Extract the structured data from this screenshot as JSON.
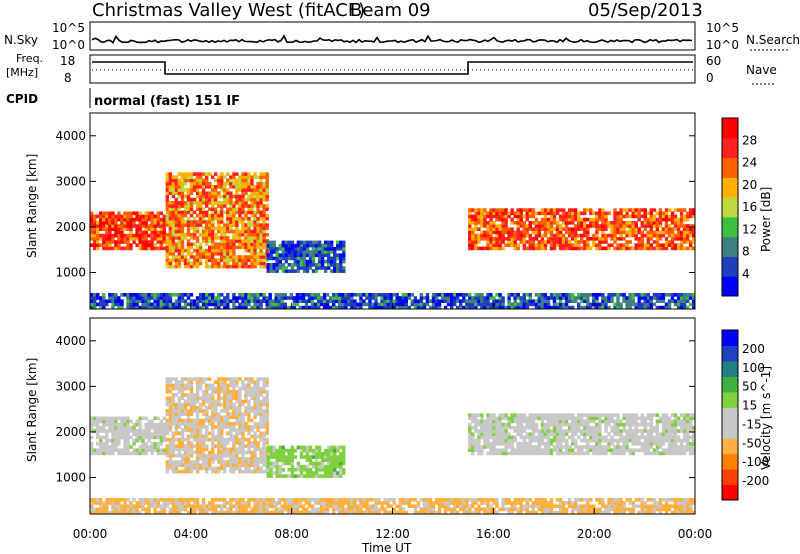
{
  "header": {
    "station": "Christmas Valley West (fitACF)",
    "beam": "Beam 09",
    "date": "05/Sep/2013"
  },
  "noise_panel": {
    "left_label": "N.Sky",
    "right_label": "N.Search",
    "left_ticks": [
      "10^5",
      "10^0"
    ],
    "right_ticks": [
      "10^5",
      "10^0"
    ]
  },
  "freq_panel": {
    "left_label_1": "Freq.",
    "left_label_2": "[MHz]",
    "right_label": "Nave",
    "left_ticks": [
      "18",
      "8"
    ],
    "right_ticks": [
      "60",
      "0"
    ]
  },
  "cpid": {
    "label": "CPID",
    "value": "normal (fast) 151 IF"
  },
  "colors": {
    "power_scale": [
      "#0000ff",
      "#1f3fbf",
      "#3f7f7f",
      "#3fbf3f",
      "#bfd83f",
      "#ffb000",
      "#ff6000",
      "#ff2020",
      "#ff0000"
    ],
    "velocity_scale": [
      "#ff0000",
      "#ff4000",
      "#ff8000",
      "#ffb040",
      "#c8c8c8",
      "#c8c8c8",
      "#80d040",
      "#40b040",
      "#208080",
      "#2040c0",
      "#0000ff"
    ]
  },
  "chart_data": [
    {
      "type": "heatmap",
      "panel": "power",
      "xlabel": "",
      "ylabel": "Slant Range [km]",
      "ylim": [
        200,
        4500
      ],
      "y_ticks": [
        "1000",
        "2000",
        "3000",
        "4000"
      ],
      "colorbar": {
        "label": "Power [dB]",
        "ticks": [
          "4",
          "8",
          "12",
          "16",
          "20",
          "24",
          "28"
        ],
        "range": [
          0,
          32
        ]
      },
      "features": [
        {
          "name": "main_band",
          "x_hours": [
            0,
            3
          ],
          "range_km": [
            1500,
            2300
          ],
          "value_db": 26
        },
        {
          "name": "rising_arc",
          "x_hours": [
            3,
            7
          ],
          "range_km": [
            1100,
            3200
          ],
          "value_db": 22
        },
        {
          "name": "evening_band",
          "x_hours": [
            15,
            24
          ],
          "range_km": [
            1500,
            2400
          ],
          "value_db": 24
        },
        {
          "name": "mid_patch",
          "x_hours": [
            7,
            10
          ],
          "range_km": [
            1000,
            1700
          ],
          "value_db": 6
        },
        {
          "name": "ground_scatter",
          "x_hours": [
            0,
            24
          ],
          "range_km": [
            200,
            500
          ],
          "value_db": 6
        }
      ]
    },
    {
      "type": "heatmap",
      "panel": "velocity",
      "xlabel": "Time UT",
      "ylabel": "Slant Range [km]",
      "ylim": [
        200,
        4500
      ],
      "y_ticks": [
        "1000",
        "2000",
        "3000",
        "4000"
      ],
      "x_ticks": [
        "00:00",
        "04:00",
        "08:00",
        "12:00",
        "16:00",
        "20:00",
        "00:00"
      ],
      "colorbar": {
        "label": "Velocity [m s^-1]",
        "ticks": [
          "-200",
          "-100",
          "-50",
          "-15",
          "15",
          "50",
          "100",
          "200"
        ],
        "range": [
          -250,
          250
        ]
      },
      "features": [
        {
          "name": "main_band",
          "x_hours": [
            0,
            3
          ],
          "range_km": [
            1500,
            2300
          ],
          "value_ms": 0
        },
        {
          "name": "rising_arc",
          "x_hours": [
            3,
            7
          ],
          "range_km": [
            1100,
            3200
          ],
          "value_ms": -60
        },
        {
          "name": "evening_band",
          "x_hours": [
            15,
            24
          ],
          "range_km": [
            1500,
            2400
          ],
          "value_ms": 0
        },
        {
          "name": "mid_patch",
          "x_hours": [
            7,
            10
          ],
          "range_km": [
            1000,
            1700
          ],
          "value_ms": 40
        },
        {
          "name": "ground_scatter",
          "x_hours": [
            0,
            24
          ],
          "range_km": [
            200,
            500
          ],
          "value_ms": -80
        }
      ]
    }
  ]
}
